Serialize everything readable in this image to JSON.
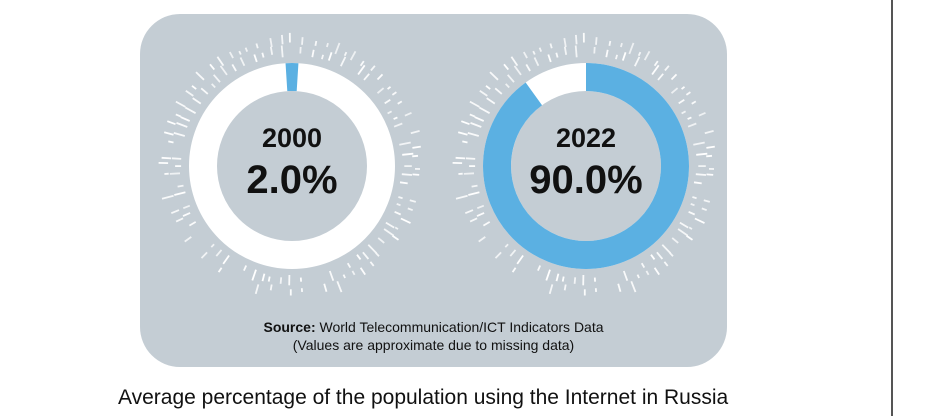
{
  "page": {
    "background_color": "#ffffff",
    "divider_color": "#555555"
  },
  "card": {
    "background_color": "#c4cdd4"
  },
  "chart_data": {
    "type": "pie",
    "subtype": "donut_pair",
    "title": "Average percentage of the population using the Internet in Russia",
    "unit": "%",
    "accent_color": "#5bb0e2",
    "ring_base_color": "#ffffff",
    "tick_color": "#ffffff",
    "donuts": [
      {
        "year": "2000",
        "value": 2.0,
        "value_label": "2.0%",
        "start_angle_deg": -3.6
      },
      {
        "year": "2022",
        "value": 90.0,
        "value_label": "90.0%",
        "start_angle_deg": 0
      }
    ],
    "source_prefix": "Source:",
    "source_text": "World Telecommunication/ICT Indicators Data",
    "source_note": "(Values are approximate due to missing data)"
  },
  "caption": "Average percentage of the population using the Internet in Russia"
}
